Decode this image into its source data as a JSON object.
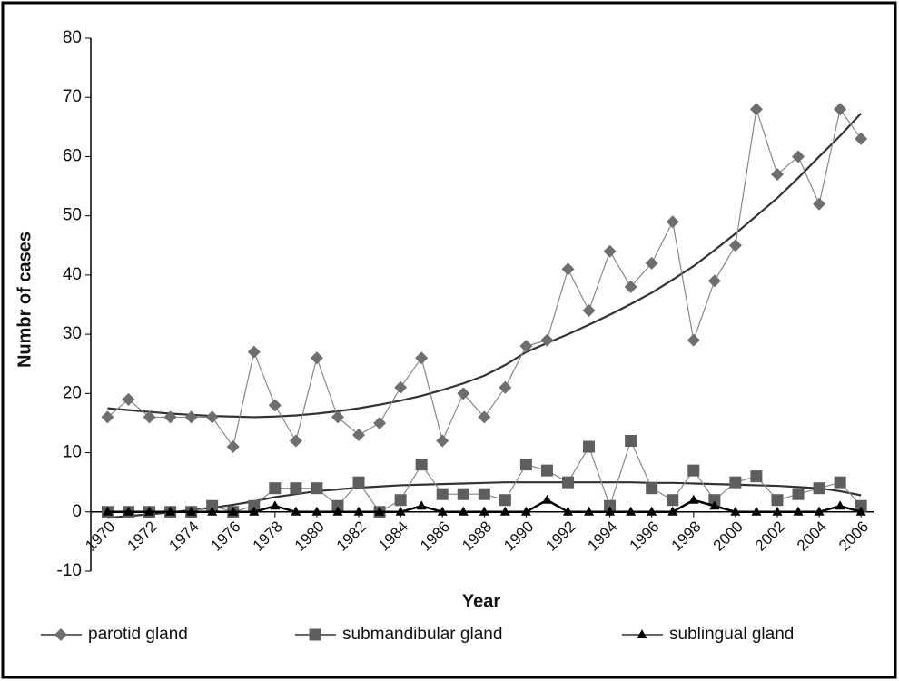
{
  "chart_data": {
    "type": "line",
    "y_label": "Numbr of cases",
    "x_label": "Year",
    "x": [
      1970,
      1971,
      1972,
      1973,
      1974,
      1975,
      1976,
      1977,
      1978,
      1979,
      1980,
      1981,
      1982,
      1983,
      1984,
      1985,
      1986,
      1987,
      1988,
      1989,
      1990,
      1991,
      1992,
      1993,
      1994,
      1995,
      1996,
      1997,
      1998,
      1999,
      2000,
      2001,
      2002,
      2003,
      2004,
      2005,
      2006
    ],
    "series": [
      {
        "name": "parotid gland",
        "color": "#6e6e6e",
        "marker": "diamond",
        "values": [
          16,
          19,
          16,
          16,
          16,
          16,
          11,
          27,
          18,
          12,
          26,
          16,
          13,
          15,
          21,
          26,
          12,
          20,
          16,
          21,
          28,
          29,
          41,
          34,
          44,
          38,
          42,
          49,
          29,
          39,
          45,
          68,
          57,
          60,
          52,
          68,
          63
        ],
        "trend": [
          17.5,
          17.2,
          16.9,
          16.6,
          16.4,
          16.2,
          16.1,
          16.0,
          16.1,
          16.3,
          16.6,
          17.0,
          17.5,
          18.1,
          18.8,
          19.6,
          20.6,
          21.7,
          23.0,
          24.8,
          27.0,
          28.5,
          30.0,
          31.6,
          33.3,
          35.1,
          37.0,
          39.2,
          41.5,
          44.2,
          47.0,
          50.0,
          53.0,
          56.4,
          60.0,
          63.5,
          67.3
        ]
      },
      {
        "name": "submandibular gland",
        "color": "#5e5e5e",
        "marker": "square",
        "values": [
          0,
          0,
          0,
          0,
          0,
          1,
          0,
          1,
          4,
          4,
          4,
          1,
          5,
          0,
          2,
          8,
          3,
          3,
          3,
          2,
          8,
          7,
          5,
          11,
          1,
          12,
          4,
          2,
          7,
          2,
          5,
          6,
          2,
          3,
          4,
          5,
          1
        ],
        "trend": [
          -1,
          -0.7,
          -0.4,
          -0.1,
          0.3,
          0.7,
          1.2,
          1.8,
          2.5,
          3.0,
          3.5,
          3.8,
          4.1,
          4.3,
          4.5,
          4.6,
          4.7,
          4.8,
          4.9,
          5.0,
          5.0,
          5.0,
          5.0,
          5.0,
          5.0,
          5.0,
          4.9,
          4.9,
          4.8,
          4.7,
          4.6,
          4.5,
          4.4,
          4.2,
          4.0,
          3.5,
          2.8
        ]
      },
      {
        "name": "sublingual gland",
        "color": "#000000",
        "marker": "triangle",
        "values": [
          0,
          0,
          0,
          0,
          0,
          0,
          0,
          0,
          1,
          0,
          0,
          0,
          0,
          0,
          0,
          1,
          0,
          0,
          0,
          0,
          0,
          2,
          0,
          0,
          0,
          0,
          0,
          0,
          2,
          1,
          0,
          0,
          0,
          0,
          0,
          1,
          0
        ]
      }
    ],
    "xlim": [
      1969.2,
      2006.6
    ],
    "xticks": [
      1970,
      1972,
      1974,
      1976,
      1978,
      1980,
      1982,
      1984,
      1986,
      1988,
      1990,
      1992,
      1994,
      1996,
      1998,
      2000,
      2002,
      2004,
      2006
    ],
    "ylim": [
      -10,
      80
    ],
    "yticks": [
      -10,
      0,
      10,
      20,
      30,
      40,
      50,
      60,
      70,
      80
    ],
    "grid": false
  }
}
